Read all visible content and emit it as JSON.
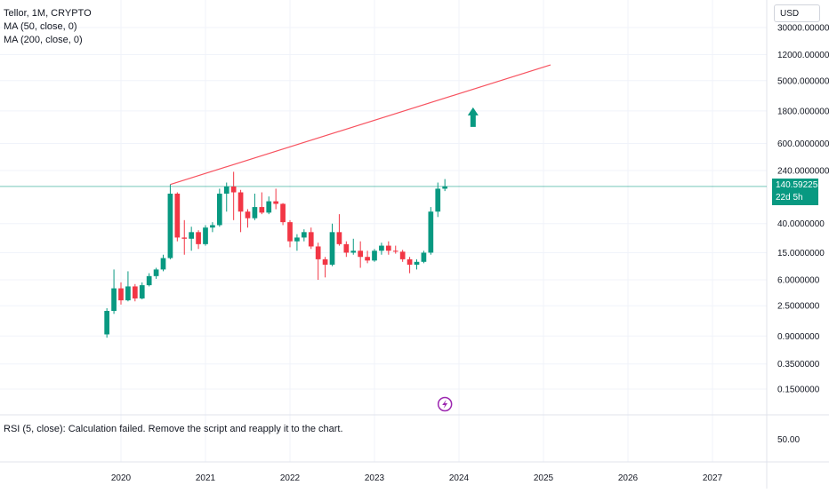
{
  "legend": {
    "symbol": "Tellor, 1M, CRYPTO",
    "ma50": "MA (50, close, 0)",
    "ma200": "MA (200, close, 0)"
  },
  "currency_button": {
    "label": "USD"
  },
  "last_price": {
    "value": "140.5922559",
    "countdown": "22d 5h"
  },
  "rsi": {
    "message": "RSI (5, close): Calculation failed. Remove the script and reapply it to the chart.",
    "tick": "50.00"
  },
  "colors": {
    "up": "#089981",
    "down": "#f23645",
    "trendline": "#f7525f",
    "price_line": "#089981",
    "event_icon": "#9c27b0",
    "grid": "#f0f3fa",
    "divider": "#e0e3eb"
  },
  "icons": {
    "arrow": "arrow-up-icon",
    "event": "lightning-event-icon"
  },
  "chart_data": {
    "type": "candlestick",
    "scale": "log",
    "grid": true,
    "y_ticks": [
      "30000.0000000",
      "12000.0000000",
      "5000.0000000",
      "1800.0000000",
      "600.0000000",
      "240.0000000",
      "40.0000000",
      "15.0000000",
      "6.0000000",
      "2.5000000",
      "0.9000000",
      "0.3500000",
      "0.1500000"
    ],
    "y_tick_values": [
      30000,
      12000,
      5000,
      1800,
      600,
      240,
      40,
      15,
      6,
      2.5,
      0.9,
      0.35,
      0.15
    ],
    "x_ticks": [
      "2020",
      "2021",
      "2022",
      "2023",
      "2024",
      "2025",
      "2026",
      "2027"
    ],
    "x_tick_values": [
      "2020-01",
      "2021-01",
      "2022-01",
      "2023-01",
      "2024-01",
      "2025-01",
      "2026-01",
      "2027-01"
    ],
    "candles": [
      {
        "t": "2019-11",
        "o": 0.95,
        "h": 2.3,
        "l": 0.85,
        "c": 2.1
      },
      {
        "t": "2019-12",
        "o": 2.1,
        "h": 8.5,
        "l": 1.9,
        "c": 4.5
      },
      {
        "t": "2020-01",
        "o": 4.5,
        "h": 5.5,
        "l": 2.6,
        "c": 3.0
      },
      {
        "t": "2020-02",
        "o": 3.0,
        "h": 8.0,
        "l": 2.9,
        "c": 4.8
      },
      {
        "t": "2020-03",
        "o": 4.8,
        "h": 5.2,
        "l": 2.9,
        "c": 3.2
      },
      {
        "t": "2020-04",
        "o": 3.2,
        "h": 5.5,
        "l": 3.1,
        "c": 5.0
      },
      {
        "t": "2020-05",
        "o": 5.0,
        "h": 7.5,
        "l": 4.8,
        "c": 6.8
      },
      {
        "t": "2020-06",
        "o": 6.8,
        "h": 9.0,
        "l": 6.2,
        "c": 8.5
      },
      {
        "t": "2020-07",
        "o": 8.5,
        "h": 14.0,
        "l": 8.0,
        "c": 12.5
      },
      {
        "t": "2020-08",
        "o": 12.5,
        "h": 150.0,
        "l": 12.0,
        "c": 110.0
      },
      {
        "t": "2020-09",
        "o": 110.0,
        "h": 115.0,
        "l": 22.0,
        "c": 25.0
      },
      {
        "t": "2020-10",
        "o": 25.0,
        "h": 45.0,
        "l": 14.0,
        "c": 24.0
      },
      {
        "t": "2020-11",
        "o": 24.0,
        "h": 36.0,
        "l": 16.0,
        "c": 30.0
      },
      {
        "t": "2020-12",
        "o": 30.0,
        "h": 32.0,
        "l": 17.0,
        "c": 20.0
      },
      {
        "t": "2021-01",
        "o": 20.0,
        "h": 38.0,
        "l": 19.0,
        "c": 35.0
      },
      {
        "t": "2021-02",
        "o": 35.0,
        "h": 42.0,
        "l": 30.0,
        "c": 38.0
      },
      {
        "t": "2021-03",
        "o": 38.0,
        "h": 130.0,
        "l": 36.0,
        "c": 110.0
      },
      {
        "t": "2021-04",
        "o": 110.0,
        "h": 160.0,
        "l": 60.0,
        "c": 140.0
      },
      {
        "t": "2021-05",
        "o": 140.0,
        "h": 230.0,
        "l": 45.0,
        "c": 115.0
      },
      {
        "t": "2021-06",
        "o": 115.0,
        "h": 125.0,
        "l": 30.0,
        "c": 60.0
      },
      {
        "t": "2021-07",
        "o": 60.0,
        "h": 65.0,
        "l": 35.0,
        "c": 48.0
      },
      {
        "t": "2021-08",
        "o": 48.0,
        "h": 110.0,
        "l": 45.0,
        "c": 70.0
      },
      {
        "t": "2021-09",
        "o": 70.0,
        "h": 115.0,
        "l": 55.0,
        "c": 58.0
      },
      {
        "t": "2021-10",
        "o": 58.0,
        "h": 100.0,
        "l": 55.0,
        "c": 85.0
      },
      {
        "t": "2021-11",
        "o": 85.0,
        "h": 130.0,
        "l": 65.0,
        "c": 78.0
      },
      {
        "t": "2021-12",
        "o": 78.0,
        "h": 80.0,
        "l": 38.0,
        "c": 42.0
      },
      {
        "t": "2022-01",
        "o": 42.0,
        "h": 45.0,
        "l": 18.0,
        "c": 22.0
      },
      {
        "t": "2022-02",
        "o": 22.0,
        "h": 28.0,
        "l": 16.0,
        "c": 25.0
      },
      {
        "t": "2022-03",
        "o": 25.0,
        "h": 33.0,
        "l": 22.0,
        "c": 30.0
      },
      {
        "t": "2022-04",
        "o": 30.0,
        "h": 35.0,
        "l": 17.0,
        "c": 18.5
      },
      {
        "t": "2022-05",
        "o": 18.5,
        "h": 21.0,
        "l": 6.0,
        "c": 12.0
      },
      {
        "t": "2022-06",
        "o": 12.0,
        "h": 13.0,
        "l": 6.5,
        "c": 10.0
      },
      {
        "t": "2022-07",
        "o": 10.0,
        "h": 40.0,
        "l": 9.5,
        "c": 30.0
      },
      {
        "t": "2022-08",
        "o": 30.0,
        "h": 55.0,
        "l": 19.0,
        "c": 20.0
      },
      {
        "t": "2022-09",
        "o": 20.0,
        "h": 22.0,
        "l": 13.0,
        "c": 15.0
      },
      {
        "t": "2022-10",
        "o": 15.0,
        "h": 24.0,
        "l": 14.0,
        "c": 16.0
      },
      {
        "t": "2022-11",
        "o": 16.0,
        "h": 22.0,
        "l": 9.0,
        "c": 13.0
      },
      {
        "t": "2022-12",
        "o": 13.0,
        "h": 16.0,
        "l": 10.5,
        "c": 11.5
      },
      {
        "t": "2023-01",
        "o": 11.5,
        "h": 17.0,
        "l": 11.0,
        "c": 16.0
      },
      {
        "t": "2023-02",
        "o": 16.0,
        "h": 21.0,
        "l": 14.0,
        "c": 19.0
      },
      {
        "t": "2023-03",
        "o": 19.0,
        "h": 22.0,
        "l": 14.0,
        "c": 16.0
      },
      {
        "t": "2023-04",
        "o": 16.0,
        "h": 19.0,
        "l": 14.5,
        "c": 15.5
      },
      {
        "t": "2023-05",
        "o": 15.5,
        "h": 16.5,
        "l": 11.0,
        "c": 12.0
      },
      {
        "t": "2023-06",
        "o": 12.0,
        "h": 13.0,
        "l": 7.5,
        "c": 10.0
      },
      {
        "t": "2023-07",
        "o": 10.0,
        "h": 12.0,
        "l": 8.5,
        "c": 11.0
      },
      {
        "t": "2023-08",
        "o": 11.0,
        "h": 16.0,
        "l": 10.5,
        "c": 15.0
      },
      {
        "t": "2023-09",
        "o": 15.0,
        "h": 70.0,
        "l": 14.0,
        "c": 60.0
      },
      {
        "t": "2023-10",
        "o": 60.0,
        "h": 160.0,
        "l": 50.0,
        "c": 130.0
      },
      {
        "t": "2023-11",
        "o": 130.0,
        "h": 180.0,
        "l": 120.0,
        "c": 140.5922559
      }
    ],
    "trendline": [
      {
        "t": "2020-08",
        "v": 150
      },
      {
        "t": "2025-02",
        "v": 8500
      }
    ],
    "price_line": 140.5922559,
    "annotation_arrow": {
      "t": "2024-03",
      "v": 1500,
      "direction": "up"
    },
    "event_marker": {
      "t": "2023-11"
    }
  }
}
